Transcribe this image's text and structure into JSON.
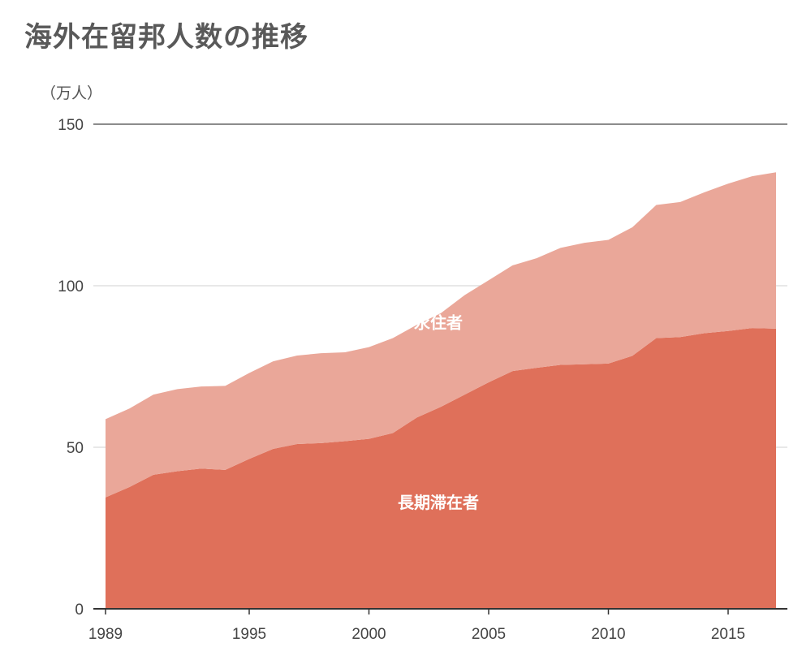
{
  "chart_data": {
    "type": "area",
    "stacked": true,
    "title": "海外在留邦人数の推移",
    "unit_label": "（万人）",
    "x": [
      1989,
      1990,
      1991,
      1992,
      1993,
      1994,
      1995,
      1996,
      1997,
      1998,
      1999,
      2000,
      2001,
      2002,
      2003,
      2004,
      2005,
      2006,
      2007,
      2008,
      2009,
      2010,
      2011,
      2012,
      2013,
      2014,
      2015,
      2016,
      2017
    ],
    "x_ticks": [
      "1989",
      "1995",
      "2000",
      "2005",
      "2010",
      "2015"
    ],
    "y_ticks": [
      "0",
      "50",
      "100",
      "150"
    ],
    "ylim": [
      0,
      150
    ],
    "grid": true,
    "series": [
      {
        "name": "長期滞在者",
        "color": "#df705a",
        "values": [
          34.5,
          37.7,
          41.5,
          42.6,
          43.4,
          43.0,
          46.4,
          49.5,
          51.0,
          51.3,
          51.9,
          52.6,
          54.4,
          59.2,
          62.5,
          66.3,
          70.1,
          73.6,
          74.6,
          75.5,
          75.7,
          75.9,
          78.3,
          83.8,
          84.1,
          85.3,
          86.0,
          86.9,
          86.7
        ]
      },
      {
        "name": "永住者",
        "color": "#eaa799",
        "values": [
          24.2,
          24.3,
          24.8,
          25.4,
          25.4,
          26.0,
          26.6,
          27.1,
          27.4,
          27.8,
          27.5,
          28.4,
          29.4,
          28.7,
          29.0,
          30.8,
          31.6,
          32.7,
          33.9,
          36.2,
          37.6,
          38.3,
          39.8,
          41.2,
          41.8,
          43.6,
          45.6,
          47.0,
          48.4
        ]
      }
    ]
  }
}
